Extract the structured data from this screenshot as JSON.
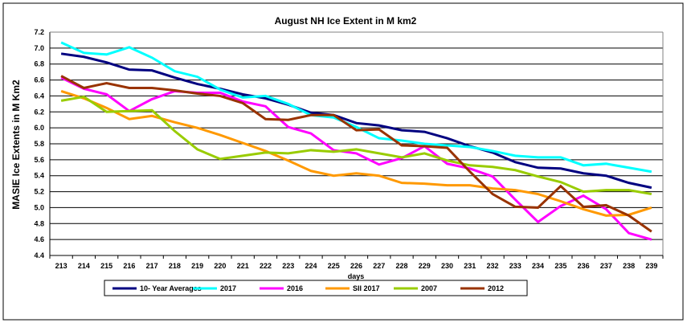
{
  "chart_data": {
    "type": "line",
    "title": "August  NH Ice Extent in M km2",
    "xlabel": "days",
    "ylabel": "MASIE Ice Extents in M Km2",
    "ylim": [
      4.4,
      7.2
    ],
    "yticks": [
      "4.4",
      "4.6",
      "4.8",
      "5.0",
      "5.2",
      "5.4",
      "5.6",
      "5.8",
      "6.0",
      "6.2",
      "6.4",
      "6.6",
      "6.8",
      "7.0",
      "7.2"
    ],
    "grid": true,
    "legend_position": "bottom",
    "x": [
      "213",
      "214",
      "215",
      "216",
      "217",
      "218",
      "219",
      "220",
      "221",
      "222",
      "223",
      "224",
      "225",
      "226",
      "227",
      "228",
      "229",
      "230",
      "231",
      "232",
      "233",
      "234",
      "235",
      "236",
      "237",
      "238",
      "239"
    ],
    "series": [
      {
        "name": "10- Year Averages",
        "color": "#000080",
        "values": [
          6.93,
          6.89,
          6.82,
          6.73,
          6.72,
          6.63,
          6.55,
          6.49,
          6.42,
          6.37,
          6.29,
          6.19,
          6.16,
          6.06,
          6.03,
          5.97,
          5.95,
          5.87,
          5.77,
          5.69,
          5.57,
          5.5,
          5.49,
          5.43,
          5.4,
          5.31,
          5.25
        ]
      },
      {
        "name": "2017",
        "color": "#00FFFF",
        "values": [
          7.07,
          6.94,
          6.92,
          7.01,
          6.88,
          6.71,
          6.64,
          6.48,
          6.38,
          6.4,
          6.3,
          6.16,
          6.13,
          6.01,
          5.87,
          5.84,
          5.8,
          5.78,
          5.76,
          5.71,
          5.65,
          5.63,
          5.63,
          5.53,
          5.55,
          5.5,
          5.45
        ]
      },
      {
        "name": "2016",
        "color": "#FF00FF",
        "values": [
          6.63,
          6.49,
          6.42,
          6.21,
          6.36,
          6.46,
          6.44,
          6.44,
          6.33,
          6.27,
          6.01,
          5.93,
          5.72,
          5.68,
          5.54,
          5.62,
          5.77,
          5.55,
          5.49,
          5.39,
          5.1,
          4.82,
          5.02,
          5.15,
          4.98,
          4.68,
          4.6
        ]
      },
      {
        "name": "SII 2017",
        "color": "#FF9900",
        "values": [
          6.46,
          6.37,
          6.25,
          6.11,
          6.15,
          6.07,
          6.0,
          5.91,
          5.81,
          5.71,
          5.59,
          5.46,
          5.4,
          5.43,
          5.4,
          5.31,
          5.3,
          5.28,
          5.28,
          5.24,
          5.22,
          5.17,
          5.08,
          4.98,
          4.9,
          4.91,
          5.0
        ]
      },
      {
        "name": "2007",
        "color": "#99CC00",
        "values": [
          6.34,
          6.39,
          6.2,
          6.21,
          6.22,
          5.96,
          5.73,
          5.61,
          5.65,
          5.69,
          5.68,
          5.72,
          5.7,
          5.73,
          5.68,
          5.63,
          5.68,
          5.59,
          5.53,
          5.51,
          5.47,
          5.39,
          5.32,
          5.2,
          5.22,
          5.22,
          5.17
        ]
      },
      {
        "name": "2012",
        "color": "#993300",
        "values": [
          6.65,
          6.5,
          6.56,
          6.5,
          6.5,
          6.47,
          6.43,
          6.4,
          6.31,
          6.11,
          6.1,
          6.16,
          6.16,
          5.97,
          5.98,
          5.78,
          5.77,
          5.75,
          5.45,
          5.17,
          5.01,
          5.0,
          5.27,
          5.01,
          5.03,
          4.9,
          4.7
        ]
      }
    ]
  }
}
